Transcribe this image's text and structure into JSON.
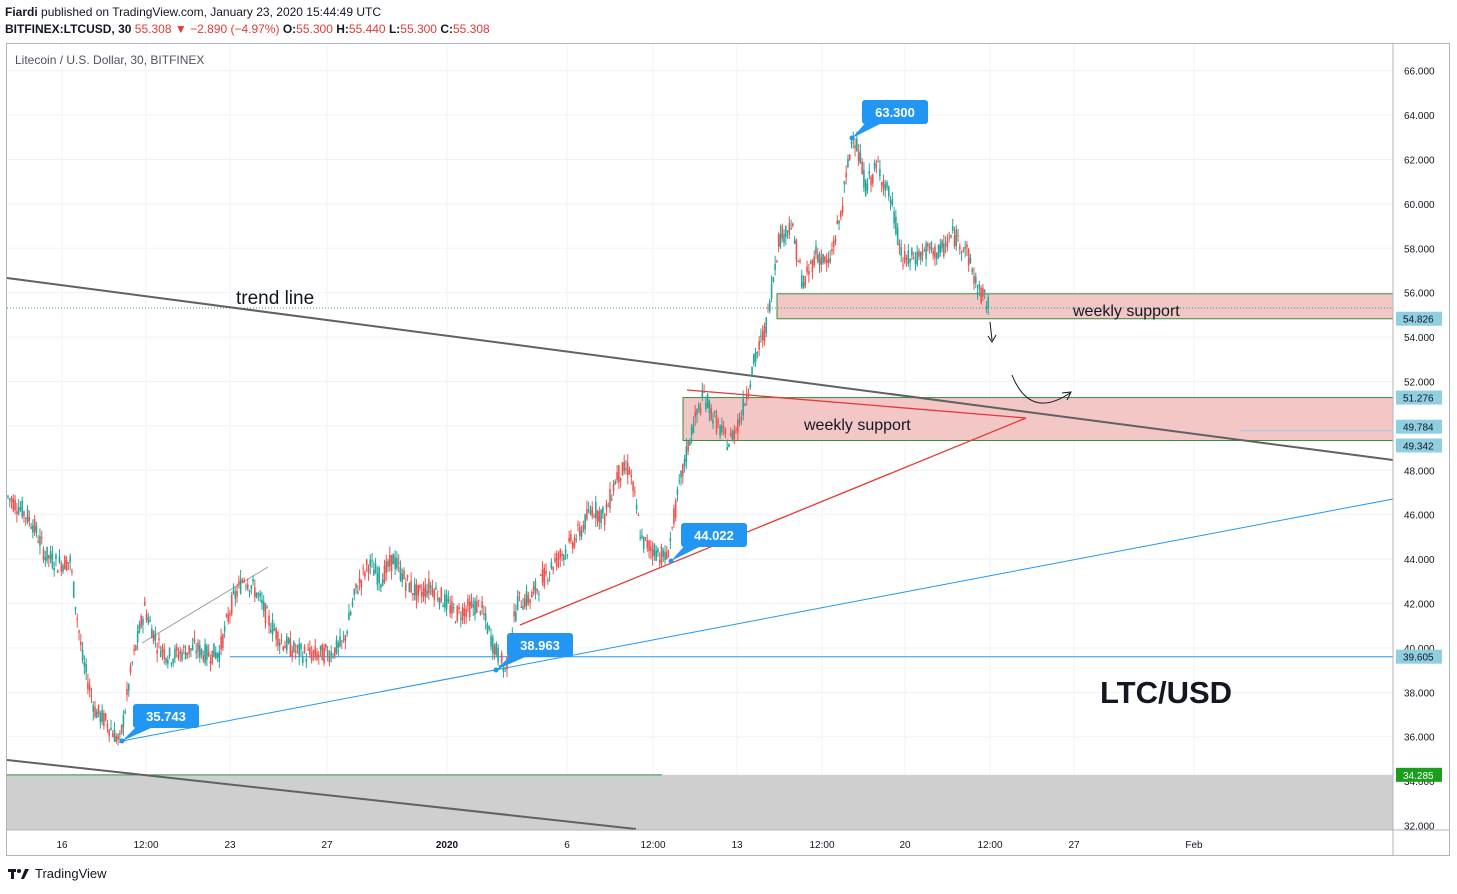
{
  "header": {
    "publisher": "Fiardi",
    "published_text": "published on TradingView.com, January 23, 2020 15:44:49 UTC",
    "symbol_line": "BITFINEX:LTCUSD, 30",
    "last": "55.308",
    "change": "−2.890 (−4.97%)",
    "o_label": "O:",
    "o": "55.300",
    "h_label": "H:",
    "h": "55.440",
    "l_label": "L:",
    "l": "55.300",
    "c_label": "C:",
    "c": "55.308"
  },
  "legend_title": "Litecoin / U.S. Dollar, 30, BITFINEX",
  "footer": {
    "brand": "TradingView"
  },
  "colors": {
    "up": "#26a69a",
    "down": "#ef5350",
    "callout": "#2196f3",
    "trend": "#616161",
    "zone": "#f4c7c7",
    "support_line": "#388e3c",
    "price_badge": "#90cfe0",
    "green_badge": "#1b9e1b"
  },
  "chart_data": {
    "type": "line",
    "title": "LTC/USD",
    "x_tick_labels": [
      "16",
      "12:00",
      "23",
      "27",
      "2020",
      "6",
      "12:00",
      "13",
      "12:00",
      "20",
      "12:00",
      "27",
      "Feb"
    ],
    "y_tick_labels": [
      "32.000",
      "34.000",
      "36.000",
      "38.000",
      "40.000",
      "42.000",
      "44.000",
      "46.000",
      "48.000",
      "50.000",
      "52.000",
      "54.000",
      "56.000",
      "58.000",
      "60.000",
      "62.000",
      "64.000",
      "66.000"
    ],
    "ylim": [
      31.8,
      67.2
    ],
    "price_path": [
      46.8,
      46.3,
      45.6,
      44.2,
      43.8,
      43.9,
      39.5,
      37.2,
      36.6,
      35.743,
      39.3,
      41.8,
      40.2,
      39.6,
      39.8,
      40.0,
      39.7,
      39.8,
      42.0,
      43.2,
      42.5,
      41.2,
      40.3,
      39.9,
      39.7,
      39.7,
      39.8,
      40.2,
      42.6,
      43.8,
      43.1,
      44.0,
      43.0,
      42.4,
      42.8,
      42.2,
      41.5,
      41.8,
      41.9,
      40.2,
      38.963,
      42.1,
      42.2,
      43.1,
      43.9,
      44.5,
      45.2,
      46.3,
      45.9,
      47.8,
      48.1,
      44.8,
      44.4,
      44.022,
      47.2,
      49.8,
      51.4,
      50.1,
      49.2,
      50.5,
      52.8,
      54.5,
      58.4,
      59.1,
      56.3,
      57.8,
      57.2,
      59.5,
      63.3,
      60.8,
      61.7,
      60.2,
      57.4,
      57.6,
      57.9,
      57.8,
      58.6,
      58.1,
      56.2,
      55.308
    ],
    "annotations": {
      "trend_label": "trend line",
      "zone_upper_label": "weekly support",
      "zone_lower_label": "weekly support",
      "callouts": [
        "63.300",
        "44.022",
        "38.963",
        "35.743"
      ],
      "right_badges": [
        "54.826",
        "51.276",
        "49.784",
        "49.342",
        "39.605",
        "34.285"
      ]
    }
  }
}
